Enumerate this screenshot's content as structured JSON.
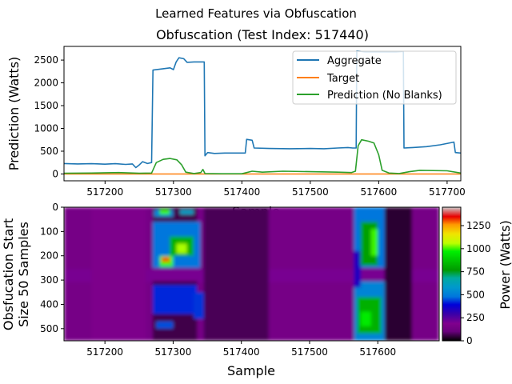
{
  "figure": {
    "suptitle": "Learned Features via Obfuscation"
  },
  "chart_data": [
    {
      "type": "line",
      "title": "Obfuscation (Test Index: 517440)",
      "xlabel": "Sample",
      "ylabel": "Prediction (Watts)",
      "xlim": [
        517140,
        517720
      ],
      "ylim": [
        -150,
        2800
      ],
      "xticks": [
        517200,
        517300,
        517400,
        517500,
        517600,
        517700
      ],
      "yticks": [
        0,
        500,
        1000,
        1500,
        2000,
        2500
      ],
      "legend_position": "top-right",
      "grid": false,
      "series": [
        {
          "name": "Aggregate",
          "color": "#1f77b4",
          "points": [
            [
              517140,
              230
            ],
            [
              517160,
              220
            ],
            [
              517180,
              225
            ],
            [
              517200,
              215
            ],
            [
              517215,
              225
            ],
            [
              517230,
              210
            ],
            [
              517240,
              220
            ],
            [
              517245,
              140
            ],
            [
              517250,
              200
            ],
            [
              517255,
              270
            ],
            [
              517262,
              230
            ],
            [
              517268,
              250
            ],
            [
              517270,
              2280
            ],
            [
              517285,
              2310
            ],
            [
              517295,
              2330
            ],
            [
              517300,
              2290
            ],
            [
              517304,
              2460
            ],
            [
              517308,
              2550
            ],
            [
              517315,
              2530
            ],
            [
              517320,
              2450
            ],
            [
              517330,
              2460
            ],
            [
              517345,
              2460
            ],
            [
              517346,
              400
            ],
            [
              517350,
              470
            ],
            [
              517360,
              450
            ],
            [
              517375,
              460
            ],
            [
              517395,
              460
            ],
            [
              517405,
              460
            ],
            [
              517407,
              760
            ],
            [
              517415,
              740
            ],
            [
              517418,
              570
            ],
            [
              517440,
              560
            ],
            [
              517470,
              555
            ],
            [
              517500,
              560
            ],
            [
              517520,
              555
            ],
            [
              517540,
              570
            ],
            [
              517555,
              580
            ],
            [
              517562,
              570
            ],
            [
              517567,
              570
            ],
            [
              517568,
              2700
            ],
            [
              517580,
              2680
            ],
            [
              517600,
              2680
            ],
            [
              517625,
              2680
            ],
            [
              517636,
              2690
            ],
            [
              517637,
              570
            ],
            [
              517650,
              580
            ],
            [
              517670,
              600
            ],
            [
              517690,
              640
            ],
            [
              517710,
              700
            ],
            [
              517712,
              470
            ],
            [
              517720,
              460
            ]
          ]
        },
        {
          "name": "Target",
          "color": "#ff7f0e",
          "points": [
            [
              517140,
              0
            ],
            [
              517720,
              0
            ]
          ]
        },
        {
          "name": "Prediction (No Blanks)",
          "color": "#2ca02c",
          "points": [
            [
              517140,
              15
            ],
            [
              517180,
              20
            ],
            [
              517220,
              30
            ],
            [
              517250,
              15
            ],
            [
              517268,
              20
            ],
            [
              517275,
              250
            ],
            [
              517285,
              320
            ],
            [
              517295,
              340
            ],
            [
              517305,
              310
            ],
            [
              517312,
              200
            ],
            [
              517318,
              40
            ],
            [
              517330,
              10
            ],
            [
              517340,
              30
            ],
            [
              517343,
              100
            ],
            [
              517346,
              10
            ],
            [
              517370,
              5
            ],
            [
              517400,
              5
            ],
            [
              517415,
              60
            ],
            [
              517430,
              40
            ],
            [
              517460,
              60
            ],
            [
              517500,
              50
            ],
            [
              517540,
              40
            ],
            [
              517560,
              30
            ],
            [
              517566,
              60
            ],
            [
              517570,
              620
            ],
            [
              517575,
              750
            ],
            [
              517585,
              720
            ],
            [
              517593,
              680
            ],
            [
              517600,
              420
            ],
            [
              517605,
              80
            ],
            [
              517615,
              20
            ],
            [
              517630,
              10
            ],
            [
              517645,
              50
            ],
            [
              517660,
              80
            ],
            [
              517700,
              70
            ],
            [
              517720,
              20
            ]
          ]
        }
      ]
    },
    {
      "type": "heatmap",
      "xlabel": "Sample",
      "ylabel": "Obsfucation Start\nSize 50 Samples",
      "xlim": [
        517140,
        517690
      ],
      "ylim": [
        550,
        0
      ],
      "xticks": [
        517200,
        517300,
        517400,
        517500,
        517600
      ],
      "yticks": [
        0,
        100,
        200,
        300,
        400,
        500
      ],
      "colormap": "nipy_spectral",
      "colorbar": {
        "label": "Power (Watts)",
        "range": [
          0,
          1450
        ],
        "ticks": [
          0,
          250,
          500,
          750,
          1000,
          1250
        ]
      },
      "regions": [
        {
          "x": [
            517140,
            517690
          ],
          "y": [
            0,
            550
          ],
          "value": 150
        },
        {
          "x": [
            517140,
            517690
          ],
          "y": [
            255,
            310
          ],
          "value": 200
        },
        {
          "x": [
            517345,
            517440
          ],
          "y": [
            0,
            550
          ],
          "value": 70
        },
        {
          "x": [
            517180,
            517260
          ],
          "y": [
            0,
            550
          ],
          "value": 175
        },
        {
          "x": [
            517270,
            517335
          ],
          "y": [
            0,
            245
          ],
          "value": 60
        },
        {
          "x": [
            517270,
            517335
          ],
          "y": [
            305,
            550
          ],
          "value": 60
        },
        {
          "x": [
            517272,
            517300
          ],
          "y": [
            10,
            40
          ],
          "value": 520
        },
        {
          "x": [
            517280,
            517295
          ],
          "y": [
            10,
            30
          ],
          "value": 1000
        },
        {
          "x": [
            517310,
            517330
          ],
          "y": [
            10,
            30
          ],
          "value": 600
        },
        {
          "x": [
            517270,
            517340
          ],
          "y": [
            60,
            250
          ],
          "value": 480
        },
        {
          "x": [
            517295,
            517330
          ],
          "y": [
            120,
            200
          ],
          "value": 820
        },
        {
          "x": [
            517280,
            517300
          ],
          "y": [
            200,
            245
          ],
          "value": 1000
        },
        {
          "x": [
            517283,
            517295
          ],
          "y": [
            205,
            225
          ],
          "value": 1300
        },
        {
          "x": [
            517305,
            517320
          ],
          "y": [
            150,
            190
          ],
          "value": 1050
        },
        {
          "x": [
            517270,
            517335
          ],
          "y": [
            320,
            440
          ],
          "value": 420
        },
        {
          "x": [
            517275,
            517300
          ],
          "y": [
            470,
            500
          ],
          "value": 450
        },
        {
          "x": [
            517330,
            517345
          ],
          "y": [
            350,
            460
          ],
          "value": 430
        },
        {
          "x": [
            517565,
            517610
          ],
          "y": [
            0,
            250
          ],
          "value": 480
        },
        {
          "x": [
            517575,
            517600
          ],
          "y": [
            60,
            240
          ],
          "value": 780
        },
        {
          "x": [
            517590,
            517600
          ],
          "y": [
            90,
            200
          ],
          "value": 1000
        },
        {
          "x": [
            517610,
            517650
          ],
          "y": [
            0,
            550
          ],
          "value": 40
        },
        {
          "x": [
            517565,
            517610
          ],
          "y": [
            305,
            550
          ],
          "value": 520
        },
        {
          "x": [
            517570,
            517605
          ],
          "y": [
            370,
            520
          ],
          "value": 820
        },
        {
          "x": [
            517575,
            517590
          ],
          "y": [
            430,
            490
          ],
          "value": 960
        },
        {
          "x": [
            517565,
            517575
          ],
          "y": [
            180,
            330
          ],
          "value": 340
        }
      ]
    }
  ]
}
